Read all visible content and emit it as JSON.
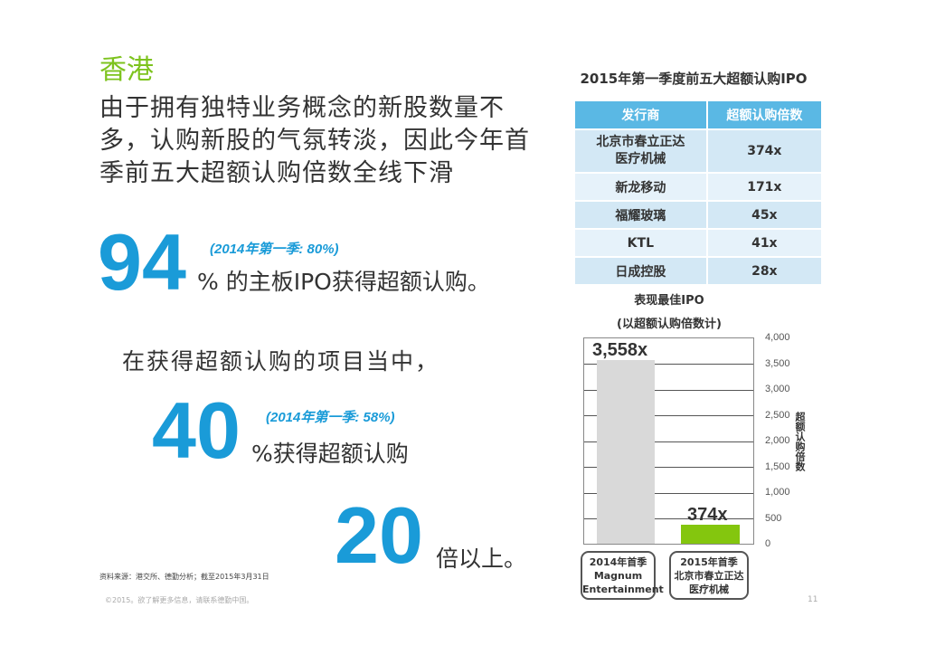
{
  "left": {
    "region_title": "香港",
    "headline_lines": [
      "由于拥有独特业务概念的新股数量不",
      "多，认购新股的气氛转淡，因此今年首",
      "季前五大超额认购倍数全线下滑"
    ],
    "stat1": {
      "number": "94",
      "comparison": "(2014年第一季: 80%)",
      "text": "% 的主板IPO获得超额认购。"
    },
    "intro2": "在获得超额认购的项目当中，",
    "stat2": {
      "number": "40",
      "comparison": "(2014年第一季: 58%)",
      "text": "%获得超额认购"
    },
    "stat3": {
      "number": "20",
      "text": "倍以上。"
    },
    "footnote": "资料来源：港交所、德勤分析；截至2015年3月31日",
    "copyright": "©2015。欲了解更多信息，请联系德勤中国。"
  },
  "table": {
    "title": "2015年第一季度前五大超额认购IPO",
    "headers": [
      "发行商",
      "超额认购倍数"
    ],
    "rows": [
      {
        "issuer_lines": [
          "北京市春立正达",
          "医疗机械"
        ],
        "multiple": "374x"
      },
      {
        "issuer_lines": [
          "新龙移动"
        ],
        "multiple": "171x"
      },
      {
        "issuer_lines": [
          "福耀玻璃"
        ],
        "multiple": "45x"
      },
      {
        "issuer_lines": [
          "KTL"
        ],
        "multiple": "41x"
      },
      {
        "issuer_lines": [
          "日成控股"
        ],
        "multiple": "28x"
      }
    ]
  },
  "chart_data": {
    "type": "bar",
    "title": "表现最佳IPO",
    "subtitle": "(以超额认购倍数计)",
    "categories": [
      [
        "2014年首季",
        "Magnum",
        "Entertainment"
      ],
      [
        "2015年首季",
        "北京市春立正达",
        "医疗机械"
      ]
    ],
    "values": [
      3558,
      374
    ],
    "value_labels": [
      "3,558x",
      "374x"
    ],
    "bar_colors": [
      "#d9d9d9",
      "#84c60e"
    ],
    "xlabel": "",
    "ylabel": "超额认购倍数",
    "ylim": [
      0,
      4000
    ],
    "yticks": [
      "4,000",
      "3,500",
      "3,000",
      "2,500",
      "2,000",
      "1,500",
      "1,000",
      "500",
      "0"
    ],
    "grid": true,
    "y_axis_position": "right"
  },
  "page": {
    "number": "11"
  },
  "colors": {
    "accent_blue": "#1a9bd8",
    "accent_green": "#7dc31e",
    "table_header": "#5ab8e4"
  }
}
